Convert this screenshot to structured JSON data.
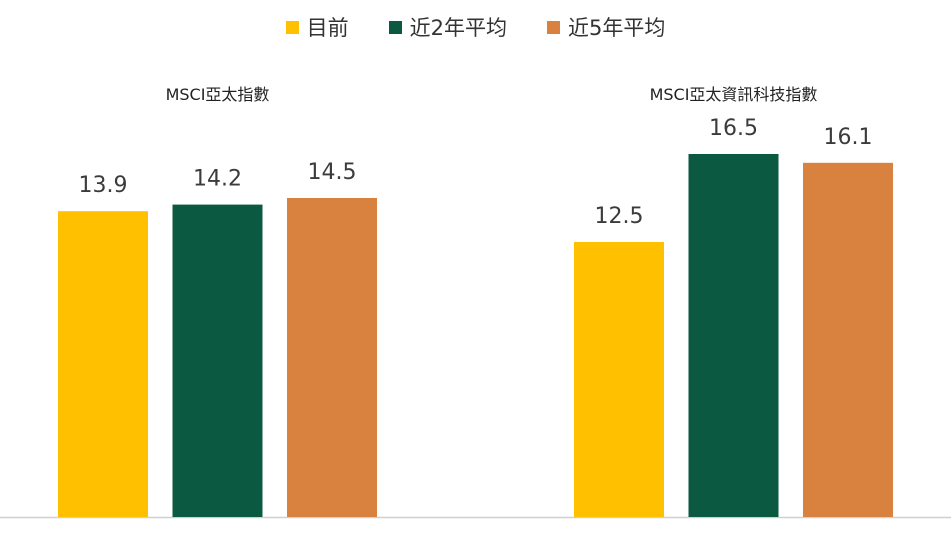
{
  "legend": {
    "items": [
      {
        "label": "目前",
        "color": "#FFC000"
      },
      {
        "label": "近2年平均",
        "color": "#0A5940"
      },
      {
        "label": "近5年平均",
        "color": "#D9813F"
      }
    ]
  },
  "chart_data": {
    "type": "bar",
    "categories": [
      "MSCI亞太指數",
      "MSCI亞太資訊科技指數"
    ],
    "series": [
      {
        "name": "目前",
        "color": "#FFC000",
        "values": [
          13.9,
          12.5
        ]
      },
      {
        "name": "近2年平均",
        "color": "#0A5940",
        "values": [
          14.2,
          16.5
        ]
      },
      {
        "name": "近5年平均",
        "color": "#D9813F",
        "values": [
          14.5,
          16.1
        ]
      }
    ],
    "value_labels": [
      [
        "13.9",
        "12.5"
      ],
      [
        "14.2",
        "16.5"
      ],
      [
        "14.5",
        "16.1"
      ]
    ],
    "ylim": [
      0,
      23.5
    ],
    "grid": false,
    "legend_position": "top"
  }
}
